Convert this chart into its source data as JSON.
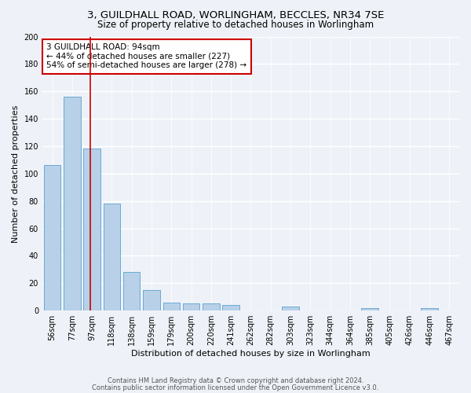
{
  "title1": "3, GUILDHALL ROAD, WORLINGHAM, BECCLES, NR34 7SE",
  "title2": "Size of property relative to detached houses in Worlingham",
  "xlabel": "Distribution of detached houses by size in Worlingham",
  "ylabel": "Number of detached properties",
  "categories": [
    "56sqm",
    "77sqm",
    "97sqm",
    "118sqm",
    "138sqm",
    "159sqm",
    "179sqm",
    "200sqm",
    "220sqm",
    "241sqm",
    "262sqm",
    "282sqm",
    "303sqm",
    "323sqm",
    "344sqm",
    "364sqm",
    "385sqm",
    "405sqm",
    "426sqm",
    "446sqm",
    "467sqm"
  ],
  "values": [
    106,
    156,
    118,
    78,
    28,
    15,
    6,
    5,
    5,
    4,
    0,
    0,
    3,
    0,
    0,
    0,
    2,
    0,
    0,
    2,
    0
  ],
  "bar_color": "#b8d0e8",
  "bar_edge_color": "#6aaad4",
  "vline_x_index": 2,
  "vline_color": "#cc0000",
  "annotation_text": "3 GUILDHALL ROAD: 94sqm\n← 44% of detached houses are smaller (227)\n54% of semi-detached houses are larger (278) →",
  "annotation_box_color": "#ffffff",
  "annotation_box_edge": "#cc0000",
  "ylim": [
    0,
    200
  ],
  "yticks": [
    0,
    20,
    40,
    60,
    80,
    100,
    120,
    140,
    160,
    180,
    200
  ],
  "footer1": "Contains HM Land Registry data © Crown copyright and database right 2024.",
  "footer2": "Contains public sector information licensed under the Open Government Licence v3.0.",
  "background_color": "#eef2f8",
  "plot_bg_color": "#eef2f8",
  "grid_color": "#ffffff",
  "title_fontsize": 9.5,
  "subtitle_fontsize": 8.5,
  "axis_label_fontsize": 8,
  "tick_fontsize": 7,
  "annotation_fontsize": 7.5,
  "footer_fontsize": 6
}
